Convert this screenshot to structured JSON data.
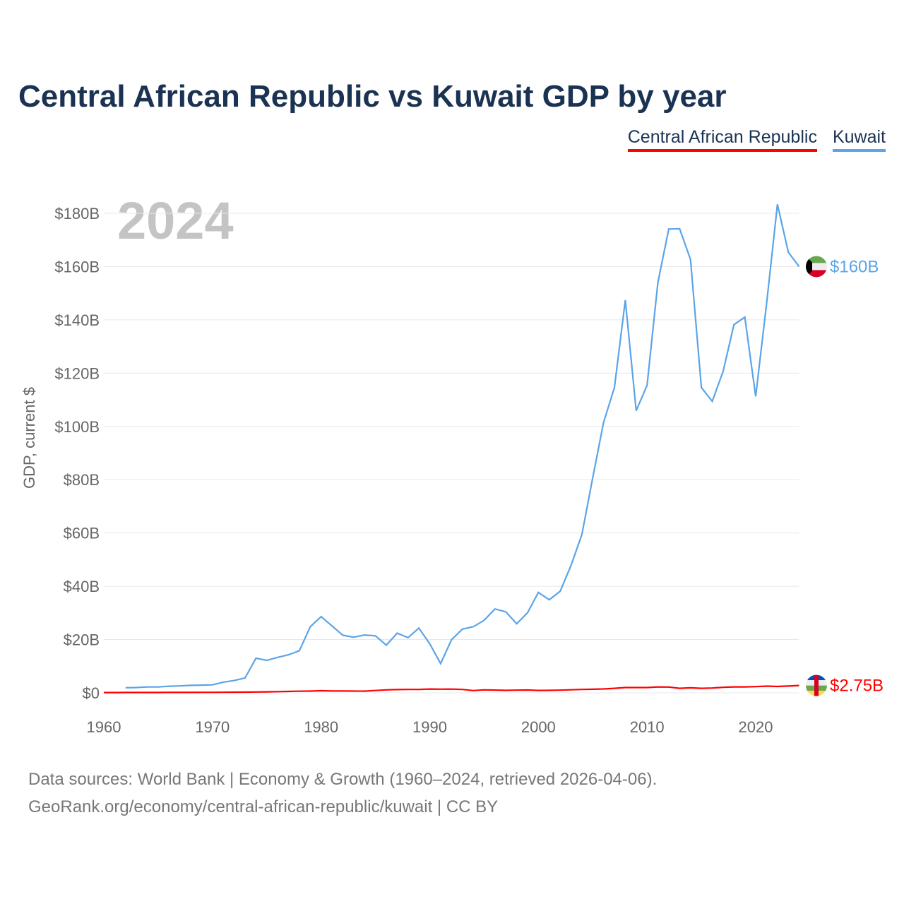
{
  "chart_data": {
    "type": "line",
    "title": "Central African Republic vs Kuwait GDP by year",
    "ylabel": "GDP, current $",
    "xlabel": "",
    "year_watermark": "2024",
    "xlim": [
      1960,
      2024
    ],
    "ylim": [
      0,
      180
    ],
    "x_ticks": [
      1960,
      1970,
      1980,
      1990,
      2000,
      2010,
      2020
    ],
    "y_ticks": [
      {
        "v": 0,
        "label": "$0"
      },
      {
        "v": 20,
        "label": "$20B"
      },
      {
        "v": 40,
        "label": "$40B"
      },
      {
        "v": 60,
        "label": "$60B"
      },
      {
        "v": 80,
        "label": "$80B"
      },
      {
        "v": 100,
        "label": "$100B"
      },
      {
        "v": 120,
        "label": "$120B"
      },
      {
        "v": 140,
        "label": "$140B"
      },
      {
        "v": 160,
        "label": "$160B"
      },
      {
        "v": 180,
        "label": "$180B"
      }
    ],
    "grid": true,
    "legend_position": "top-right",
    "x_start": 1960,
    "series": [
      {
        "name": "Central African Republic",
        "color": "#ff0000",
        "end_label": "$2.75B",
        "values": [
          0.11,
          0.11,
          0.12,
          0.13,
          0.13,
          0.14,
          0.15,
          0.15,
          0.16,
          0.18,
          0.19,
          0.21,
          0.23,
          0.27,
          0.33,
          0.37,
          0.46,
          0.53,
          0.6,
          0.66,
          0.8,
          0.7,
          0.7,
          0.65,
          0.63,
          0.87,
          1.12,
          1.21,
          1.26,
          1.26,
          1.44,
          1.38,
          1.41,
          1.26,
          0.85,
          1.12,
          1.03,
          0.94,
          1.01,
          1.05,
          0.91,
          0.94,
          1.0,
          1.14,
          1.27,
          1.35,
          1.47,
          1.7,
          1.98,
          1.98,
          1.99,
          2.21,
          2.17,
          1.69,
          1.89,
          1.69,
          1.81,
          2.07,
          2.22,
          2.22,
          2.33,
          2.52,
          2.38,
          2.54,
          2.75
        ]
      },
      {
        "name": "Kuwait",
        "color": "#5ba4e8",
        "end_label": "$160B",
        "values": [
          null,
          null,
          1.9,
          2.0,
          2.2,
          2.2,
          2.5,
          2.6,
          2.8,
          2.9,
          3.0,
          4.0,
          4.6,
          5.6,
          13.0,
          12.2,
          13.3,
          14.3,
          15.8,
          24.8,
          28.6,
          25.1,
          21.6,
          20.9,
          21.7,
          21.4,
          17.9,
          22.4,
          20.7,
          24.3,
          18.4,
          11.0,
          19.9,
          23.9,
          24.8,
          27.2,
          31.5,
          30.4,
          25.9,
          30.1,
          37.7,
          34.9,
          38.1,
          47.8,
          59.4,
          80.8,
          101.5,
          114.6,
          147.4,
          105.9,
          115.4,
          154.0,
          174.1,
          174.2,
          162.7,
          114.6,
          109.4,
          120.7,
          138.2,
          141.0,
          111.3,
          146.0,
          183.4,
          165.4,
          160.0
        ]
      }
    ]
  },
  "source": {
    "line1": "Data sources: World Bank | Economy & Growth (1960–2024, retrieved 2026-04-06).",
    "line2": "GeoRank.org/economy/central-african-republic/kuwait | CC BY"
  }
}
